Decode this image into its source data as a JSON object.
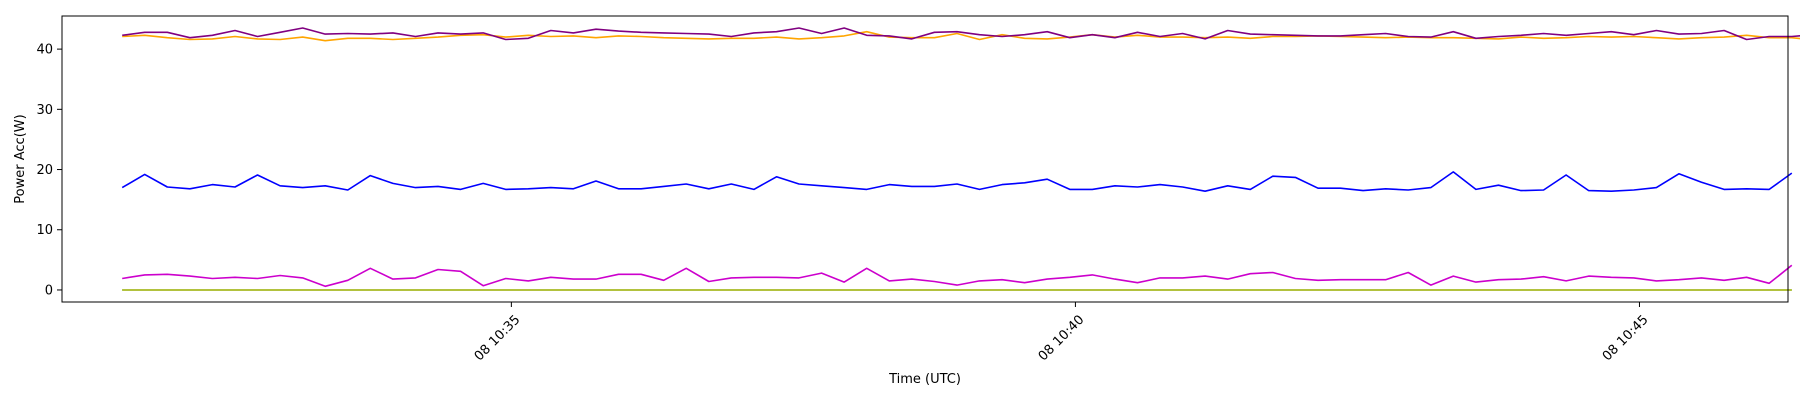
{
  "chart_data": {
    "type": "line",
    "title": "",
    "xlabel": "Time (UTC)",
    "ylabel": "Power Acc(W)",
    "ylim": [
      -2,
      45.5
    ],
    "xlim": [
      "08 10:31:01",
      "08 10:46:19"
    ],
    "x_start": "08 10:31:33",
    "x_step_seconds": 12,
    "xticks": [
      {
        "value": "08 10:35",
        "label": "08 10:35"
      },
      {
        "value": "08 10:40",
        "label": "08 10:40"
      },
      {
        "value": "08 10:45",
        "label": "08 10:45"
      }
    ],
    "yticks": [
      0,
      10,
      20,
      30,
      40
    ],
    "grid": false,
    "legend": "none",
    "series": [
      {
        "color": "#ffa500",
        "values": [
          42.1,
          42.3,
          41.9,
          41.6,
          41.7,
          42.1,
          41.7,
          41.6,
          42.0,
          41.4,
          41.8,
          41.8,
          41.6,
          41.8,
          42.0,
          42.3,
          42.4,
          42.0,
          42.3,
          42.1,
          42.2,
          41.9,
          42.2,
          42.1,
          41.9,
          41.8,
          41.7,
          41.8,
          41.8,
          42.0,
          41.7,
          41.9,
          42.2,
          42.9,
          42.0,
          41.9,
          41.9,
          42.6,
          41.6,
          42.4,
          41.8,
          41.7,
          42.0,
          42.4,
          42.0,
          42.3,
          42.0,
          42.0,
          41.9,
          42.0,
          41.8,
          42.1,
          42.1,
          42.2,
          42.1,
          42.0,
          41.9,
          42.0,
          41.9,
          41.9,
          41.8,
          41.7,
          42.0,
          41.8,
          41.9,
          42.1,
          42.0,
          42.1,
          41.9,
          41.7,
          41.9,
          42.0,
          42.3,
          41.9,
          41.9,
          41.5,
          41.8,
          41.6,
          41.7
        ]
      },
      {
        "color": "#800080",
        "values": [
          42.3,
          42.8,
          42.8,
          41.9,
          42.3,
          43.1,
          42.1,
          42.8,
          43.5,
          42.5,
          42.6,
          42.5,
          42.7,
          42.1,
          42.7,
          42.5,
          42.7,
          41.6,
          41.8,
          43.1,
          42.7,
          43.3,
          43.0,
          42.8,
          42.7,
          42.6,
          42.5,
          42.1,
          42.7,
          42.9,
          43.5,
          42.6,
          43.5,
          42.3,
          42.2,
          41.7,
          42.8,
          42.9,
          42.4,
          42.1,
          42.4,
          42.9,
          41.9,
          42.4,
          41.9,
          42.8,
          42.1,
          42.6,
          41.7,
          43.1,
          42.5,
          42.4,
          42.3,
          42.2,
          42.2,
          42.4,
          42.6,
          42.1,
          42.0,
          42.9,
          41.8,
          42.1,
          42.3,
          42.6,
          42.3,
          42.6,
          42.9,
          42.4,
          43.1,
          42.5,
          42.6,
          43.1,
          41.6,
          42.1,
          42.1,
          42.4
        ]
      },
      {
        "color": "#0000ff",
        "values": [
          17.0,
          19.2,
          17.1,
          16.8,
          17.5,
          17.1,
          19.1,
          17.3,
          17.0,
          17.3,
          16.6,
          19.0,
          17.7,
          17.0,
          17.2,
          16.7,
          17.7,
          16.7,
          16.8,
          17.0,
          16.8,
          18.1,
          16.8,
          16.8,
          17.2,
          17.6,
          16.8,
          17.6,
          16.7,
          18.8,
          17.6,
          17.3,
          17.0,
          16.7,
          17.5,
          17.2,
          17.2,
          17.6,
          16.7,
          17.5,
          17.8,
          18.4,
          16.7,
          16.7,
          17.3,
          17.1,
          17.5,
          17.1,
          16.4,
          17.3,
          16.7,
          18.9,
          18.7,
          16.9,
          16.9,
          16.5,
          16.8,
          16.6,
          17.0,
          19.6,
          16.7,
          17.4,
          16.5,
          16.6,
          19.1,
          16.5,
          16.4,
          16.6,
          17.0,
          19.3,
          17.9,
          16.7,
          16.8,
          16.7,
          19.4
        ]
      },
      {
        "color": "#cc00cc",
        "values": [
          1.9,
          2.5,
          2.6,
          2.3,
          1.9,
          2.1,
          1.9,
          2.4,
          2.0,
          0.6,
          1.6,
          3.6,
          1.8,
          2.0,
          3.4,
          3.1,
          0.7,
          1.9,
          1.5,
          2.1,
          1.8,
          1.8,
          2.6,
          2.6,
          1.6,
          3.6,
          1.4,
          2.0,
          2.1,
          2.1,
          2.0,
          2.8,
          1.3,
          3.6,
          1.5,
          1.8,
          1.4,
          0.8,
          1.5,
          1.7,
          1.2,
          1.8,
          2.1,
          2.5,
          1.8,
          1.2,
          2.0,
          2.0,
          2.3,
          1.8,
          2.7,
          2.9,
          1.9,
          1.6,
          1.7,
          1.7,
          1.7,
          2.9,
          0.8,
          2.3,
          1.3,
          1.7,
          1.8,
          2.2,
          1.5,
          2.3,
          2.1,
          2.0,
          1.5,
          1.7,
          2.0,
          1.6,
          2.1,
          1.1,
          4.1
        ]
      },
      {
        "color": "#2ca02c",
        "values": [
          0,
          0,
          0,
          0,
          0,
          0,
          0,
          0,
          0,
          0,
          0,
          0,
          0,
          0,
          0,
          0,
          0,
          0,
          0,
          0,
          0,
          0,
          0,
          0,
          0,
          0,
          0,
          0,
          0,
          0,
          0,
          0,
          0,
          0,
          0,
          0,
          0,
          0,
          0,
          0,
          0,
          0,
          0,
          0,
          0,
          0,
          0,
          0,
          0,
          0,
          0,
          0,
          0,
          0,
          0,
          0,
          0,
          0,
          0,
          0,
          0,
          0,
          0,
          0,
          0,
          0,
          0,
          0,
          0,
          0,
          0,
          0,
          0,
          0,
          0
        ]
      },
      {
        "color": "#bcbd22",
        "values": [
          0,
          0,
          0,
          0,
          0,
          0,
          0,
          0,
          0,
          0,
          0,
          0,
          0,
          0,
          0,
          0,
          0,
          0,
          0,
          0,
          0,
          0,
          0,
          0,
          0,
          0,
          0,
          0,
          0,
          0,
          0,
          0,
          0,
          0,
          0,
          0,
          0,
          0,
          0,
          0,
          0,
          0,
          0,
          0,
          0,
          0,
          0,
          0,
          0,
          0,
          0,
          0,
          0,
          0,
          0,
          0,
          0,
          0,
          0,
          0,
          0,
          0,
          0,
          0,
          0,
          0,
          0,
          0,
          0,
          0,
          0,
          0,
          0,
          0,
          0
        ]
      }
    ]
  }
}
